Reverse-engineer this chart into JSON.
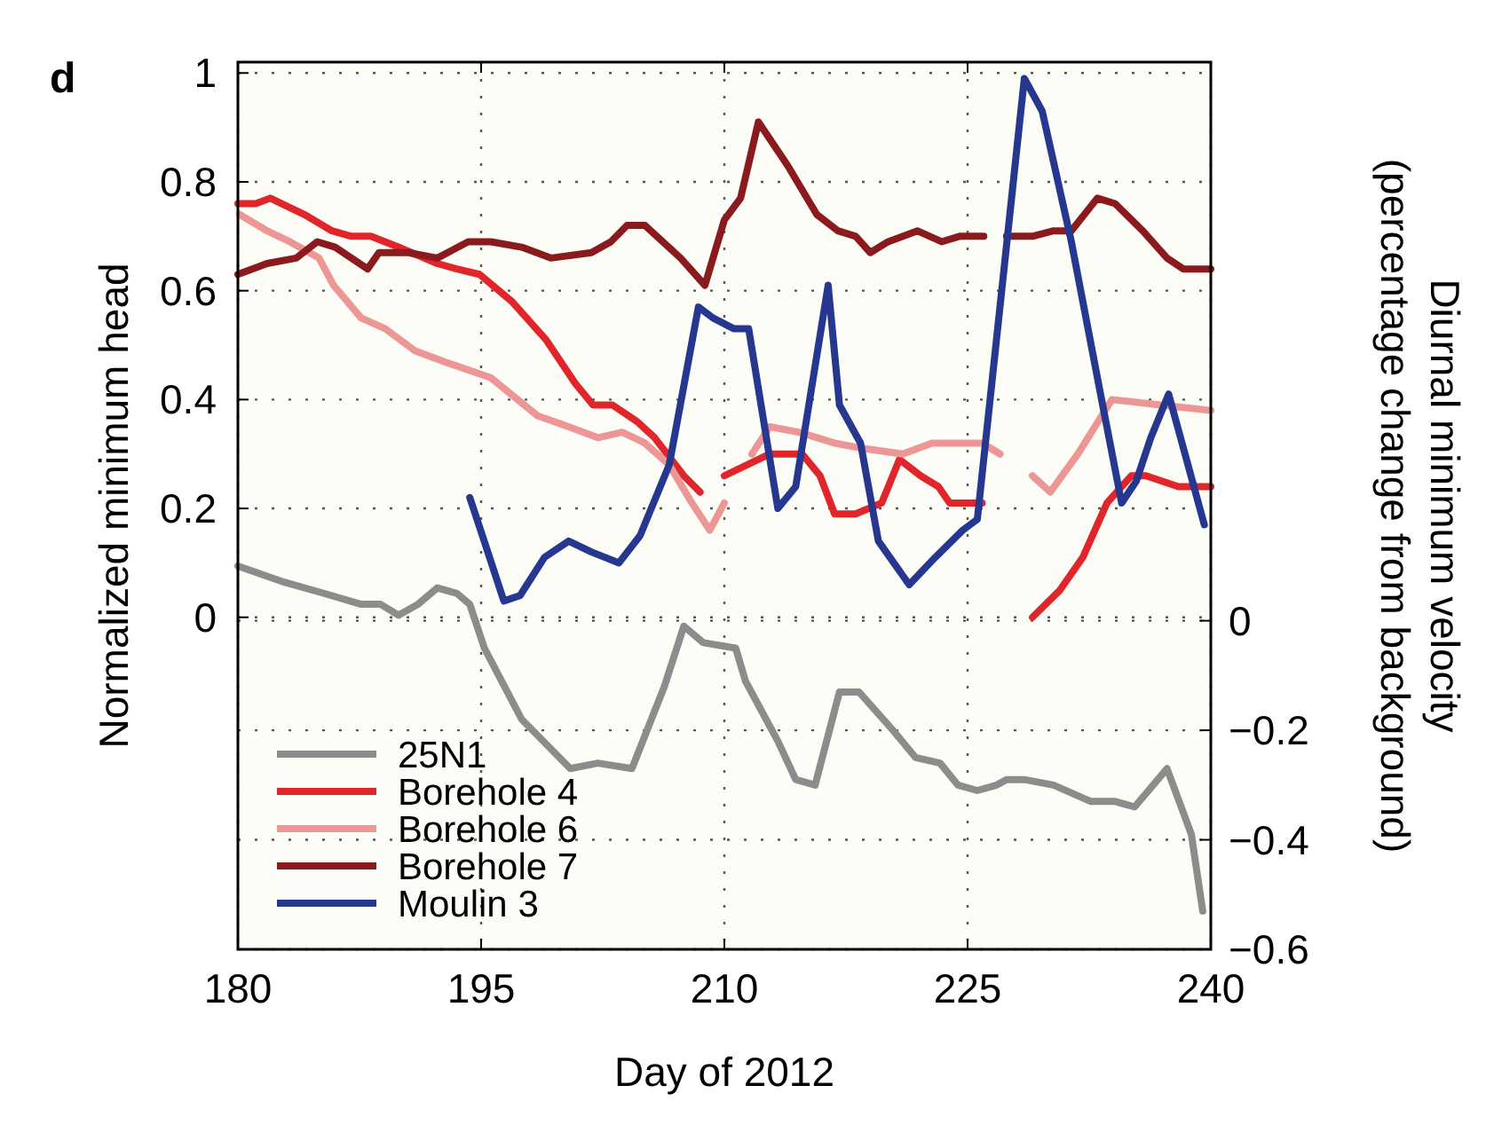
{
  "chart_data": {
    "type": "line",
    "xlabel": "Day of 2012",
    "ylabel": "Normalized minimum head",
    "y2label": "Diurnal minimum velocity\n(percentage change from background)",
    "annotations": [
      "d"
    ],
    "xlim": [
      180,
      240
    ],
    "xticks": [
      180,
      195,
      210,
      225,
      240
    ],
    "ylim": [
      -0.61,
      1.02
    ],
    "yticks": [
      0,
      0.2,
      0.4,
      0.6,
      0.8,
      1
    ],
    "y2lim": [
      -0.6,
      1.02
    ],
    "y2ticks": [
      0,
      {
        "value": -0.2,
        "label": "−0.2"
      },
      {
        "value": -0.4,
        "label": "−0.4"
      },
      {
        "value": -0.6,
        "label": "−0.6"
      }
    ],
    "grid": true,
    "legend": "bottom left",
    "line_style": "solid",
    "marker": "none",
    "series": [
      {
        "name": "25N1",
        "color": "#8c8c8c",
        "axis": "y2",
        "x": [
          180,
          182.9,
          185.3,
          187.6,
          188.8,
          189.9,
          191.1,
          192.3,
          193.5,
          194.3,
          195.2,
          197.5,
          200.5,
          202.2,
          204.3,
          206.3,
          207.5,
          208.7,
          210.7,
          211.3,
          213.3,
          214.4,
          215.6,
          217.1,
          218.3,
          220.4,
          221.8,
          223.3,
          224.4,
          225.6,
          226.8,
          227.4,
          228.5,
          230.3,
          232.6,
          234.1,
          235.3,
          237.3,
          238.8,
          239.5
        ],
        "values": [
          0.1,
          0.07,
          0.05,
          0.03,
          0.03,
          0.01,
          0.03,
          0.06,
          0.05,
          0.03,
          -0.05,
          -0.18,
          -0.27,
          -0.26,
          -0.27,
          -0.12,
          -0.01,
          -0.04,
          -0.05,
          -0.11,
          -0.22,
          -0.29,
          -0.3,
          -0.13,
          -0.13,
          -0.2,
          -0.25,
          -0.26,
          -0.3,
          -0.31,
          -0.3,
          -0.29,
          -0.29,
          -0.3,
          -0.33,
          -0.33,
          -0.34,
          -0.27,
          -0.39,
          -0.53
        ]
      },
      {
        "name": "Borehole 4",
        "color": "#e0262b",
        "x": [
          180,
          181.1,
          182,
          184.1,
          185.8,
          187,
          188.2,
          189.9,
          192.3,
          193.5,
          194.9,
          196.9,
          199,
          200.8,
          201.9,
          203.1,
          204.6,
          205.7,
          207.5,
          208.5,
          209.5,
          210,
          212.8,
          214.8,
          215.9,
          216.8,
          218.1,
          219.7,
          220.8,
          222.1,
          223.2,
          223.9,
          225.9,
          227.5,
          229,
          230.7,
          232.1,
          233.6,
          235.1,
          236,
          238,
          240
        ],
        "values": [
          0.76,
          0.76,
          0.77,
          0.74,
          0.71,
          0.7,
          0.7,
          0.68,
          0.65,
          0.64,
          0.63,
          0.58,
          0.51,
          0.43,
          0.39,
          0.39,
          0.36,
          0.33,
          0.26,
          0.23,
          null,
          0.26,
          0.3,
          0.3,
          0.26,
          0.19,
          0.19,
          0.21,
          0.29,
          0.26,
          0.24,
          0.21,
          0.21,
          null,
          0,
          0.05,
          0.11,
          0.21,
          0.26,
          0.26,
          0.24,
          0.24
        ]
      },
      {
        "name": "Borehole 6",
        "color": "#ec9696",
        "x": [
          180.1,
          181.8,
          183.2,
          185,
          185.9,
          187.6,
          189.1,
          190.9,
          192.7,
          195.6,
          198.5,
          200.4,
          202.2,
          203.7,
          205.1,
          206.6,
          208,
          209.1,
          210,
          210.8,
          211.7,
          212.8,
          214.6,
          216.8,
          218.6,
          221,
          222.8,
          224.8,
          225.9,
          227,
          228,
          229,
          230.1,
          231.8,
          233.9,
          236.9,
          240
        ],
        "values": [
          0.74,
          0.71,
          0.69,
          0.66,
          0.61,
          0.55,
          0.53,
          0.49,
          0.47,
          0.44,
          0.37,
          0.35,
          0.33,
          0.34,
          0.32,
          0.28,
          0.21,
          0.16,
          0.21,
          null,
          0.3,
          0.35,
          0.34,
          0.32,
          0.31,
          0.3,
          0.32,
          0.32,
          0.32,
          0.3,
          null,
          0.26,
          0.23,
          0.3,
          0.4,
          0.39,
          0.38
        ]
      },
      {
        "name": "Borehole 7",
        "color": "#8b1a1f",
        "x": [
          180,
          181.8,
          183.6,
          184.9,
          186,
          188,
          188.7,
          190.5,
          192.3,
          194.2,
          195.6,
          197.5,
          199.3,
          201.8,
          203,
          204,
          205.1,
          207.3,
          208.8,
          210,
          211,
          212.1,
          213.9,
          215.7,
          217,
          218.1,
          219,
          220.1,
          221.9,
          223.4,
          224.5,
          226,
          226.7,
          227.4,
          229,
          230.3,
          231.4,
          233,
          234.1,
          235.8,
          237.3,
          238.3,
          240
        ],
        "values": [
          0.63,
          0.65,
          0.66,
          0.69,
          0.68,
          0.64,
          0.67,
          0.67,
          0.66,
          0.69,
          0.69,
          0.68,
          0.66,
          0.67,
          0.69,
          0.72,
          0.72,
          0.66,
          0.61,
          0.73,
          0.77,
          0.91,
          0.83,
          0.74,
          0.71,
          0.7,
          0.67,
          0.69,
          0.71,
          0.69,
          0.7,
          0.7,
          null,
          0.7,
          0.7,
          0.71,
          0.71,
          0.77,
          0.76,
          0.71,
          0.66,
          0.64,
          0.64
        ]
      },
      {
        "name": "Moulin 3",
        "color": "#26378f",
        "x": [
          194.3,
          195.3,
          196.4,
          197.4,
          198.9,
          200.4,
          201.8,
          203.5,
          204.8,
          206.6,
          208.4,
          209.3,
          210.6,
          211.5,
          213.3,
          214.4,
          216.4,
          217.1,
          218.4,
          219.5,
          221.4,
          223,
          224.7,
          225.6,
          228.5,
          229.6,
          231.4,
          233.2,
          234.5,
          235.4,
          236.3,
          237.4,
          239.6
        ],
        "values": [
          0.22,
          0.13,
          0.03,
          0.04,
          0.11,
          0.14,
          0.12,
          0.1,
          0.15,
          0.28,
          0.57,
          0.55,
          0.53,
          0.53,
          0.2,
          0.24,
          0.61,
          0.39,
          0.32,
          0.14,
          0.06,
          0.11,
          0.16,
          0.18,
          0.99,
          0.93,
          0.69,
          0.41,
          0.21,
          0.25,
          0.33,
          0.41,
          0.17
        ]
      }
    ]
  }
}
